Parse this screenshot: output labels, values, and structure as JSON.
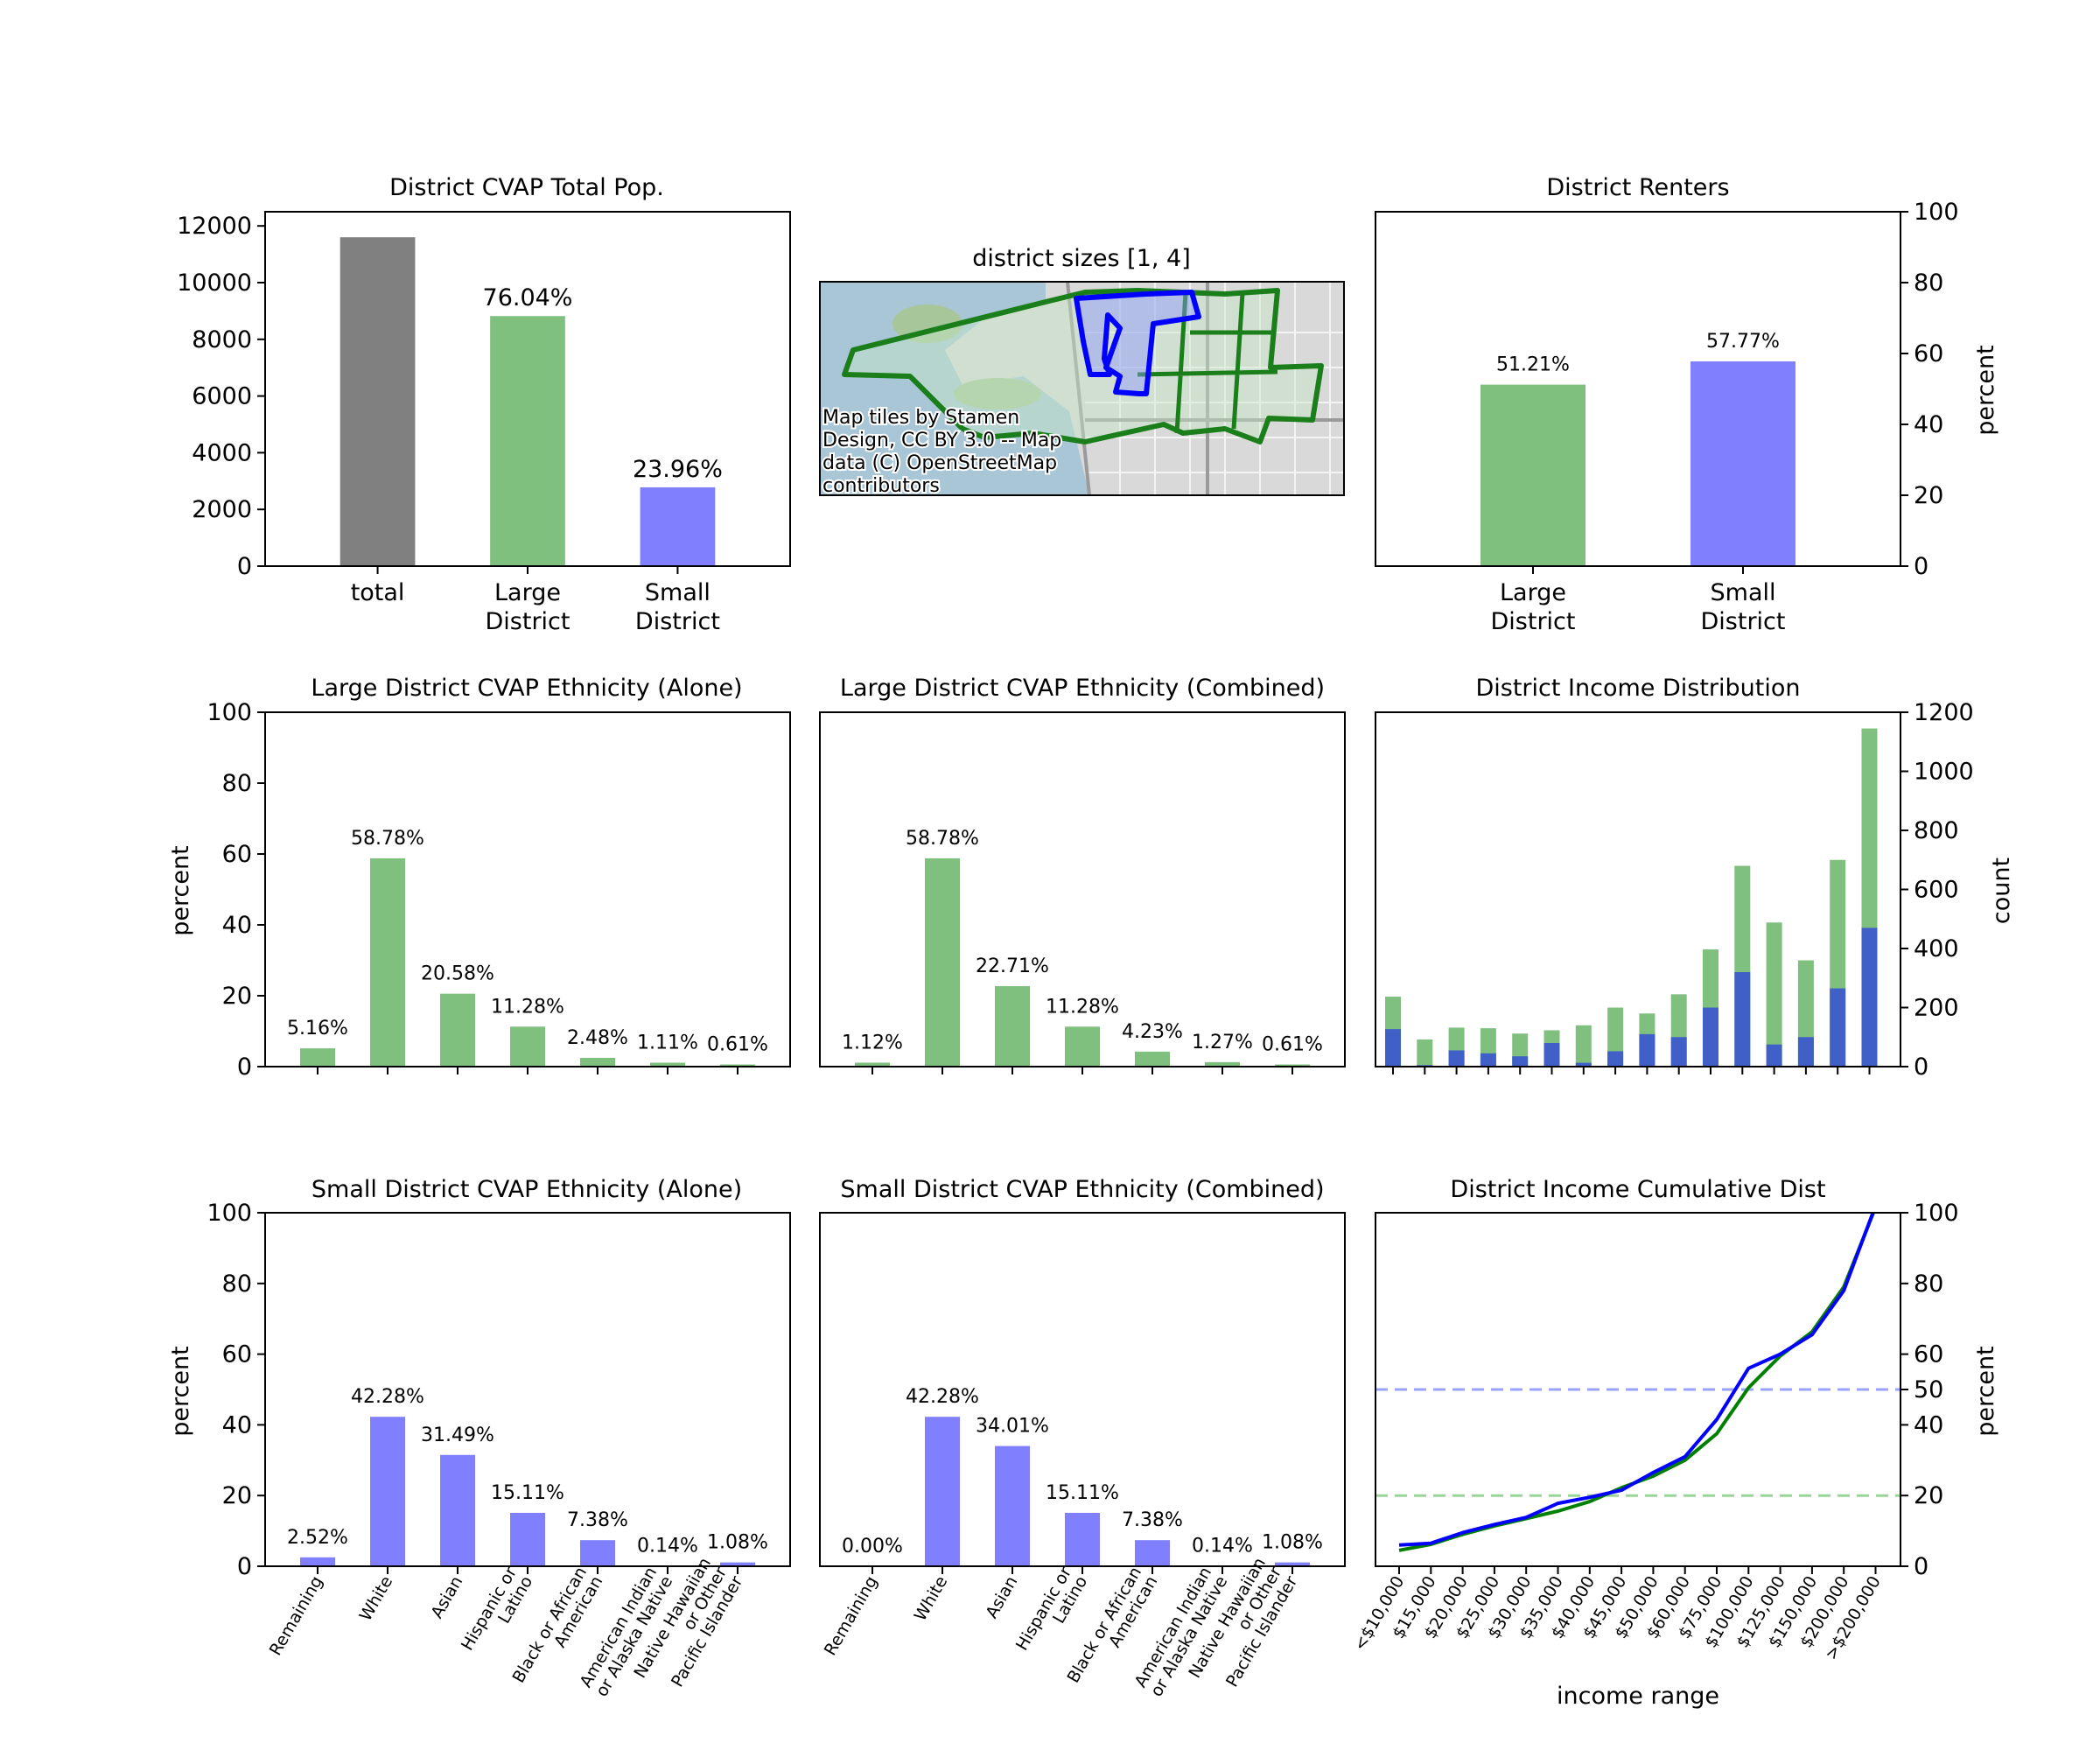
{
  "colors": {
    "total": "#808080",
    "large": "#7fc07f",
    "small": "#8080ff",
    "small_dark": "#4060c8",
    "large_line": "#008000",
    "small_line": "#0000ff",
    "hline_large": "#99d699",
    "hline_small": "#9aa2ff"
  },
  "map": {
    "title": "district sizes [1, 4]",
    "attribution": [
      "Map tiles by Stamen",
      "Design, CC BY 3.0 -- Map",
      "data (C) OpenStreetMap",
      "contributors"
    ]
  },
  "chart_data": [
    {
      "id": "cvap_total",
      "type": "bar",
      "title": "District CVAP Total Pop.",
      "categories": [
        [
          "total"
        ],
        [
          "Large",
          "District"
        ],
        [
          "Small",
          "District"
        ]
      ],
      "values": [
        11600,
        8820,
        2780
      ],
      "bar_colors": [
        "total",
        "large",
        "small"
      ],
      "data_labels": [
        "",
        "76.04%",
        "23.96%"
      ],
      "ylim": [
        0,
        12500
      ],
      "yticks": [
        0,
        2000,
        4000,
        6000,
        8000,
        10000,
        12000
      ],
      "ylabel": "",
      "yaxis": "left"
    },
    {
      "id": "renters",
      "type": "bar",
      "title": "District Renters",
      "categories": [
        [
          "Large",
          "District"
        ],
        [
          "Small",
          "District"
        ]
      ],
      "values": [
        51.21,
        57.77
      ],
      "bar_colors": [
        "large",
        "small"
      ],
      "data_labels": [
        "51.21%",
        "57.77%"
      ],
      "ylim": [
        0,
        100
      ],
      "yticks": [
        0,
        20,
        40,
        60,
        80,
        100
      ],
      "ylabel": "percent",
      "yaxis": "right"
    },
    {
      "id": "large_alone",
      "type": "bar",
      "title": "Large District CVAP Ethnicity (Alone)",
      "categories": [
        "Remaining",
        "White",
        "Asian",
        "Hispanic or Latino",
        "Black or African American",
        "American Indian or Alaska Native",
        "Native Hawaiian or Other Pacific Islander"
      ],
      "values": [
        5.16,
        58.78,
        20.58,
        11.28,
        2.48,
        1.11,
        0.61
      ],
      "data_labels": [
        "5.16%",
        "58.78%",
        "20.58%",
        "11.28%",
        "2.48%",
        "1.11%",
        "0.61%"
      ],
      "bar_color": "large",
      "ylim": [
        0,
        100
      ],
      "yticks": [
        0,
        20,
        40,
        60,
        80,
        100
      ],
      "ylabel": "percent"
    },
    {
      "id": "large_combined",
      "type": "bar",
      "title": "Large District CVAP Ethnicity (Combined)",
      "categories": [
        "Remaining",
        "White",
        "Asian",
        "Hispanic or Latino",
        "Black or African American",
        "American Indian or Alaska Native",
        "Native Hawaiian or Other Pacific Islander"
      ],
      "values": [
        1.12,
        58.78,
        22.71,
        11.28,
        4.23,
        1.27,
        0.61
      ],
      "data_labels": [
        "1.12%",
        "58.78%",
        "22.71%",
        "11.28%",
        "4.23%",
        "1.27%",
        "0.61%"
      ],
      "bar_color": "large",
      "ylim": [
        0,
        100
      ],
      "yticks": [
        0,
        20,
        40,
        60,
        80,
        100
      ],
      "ylabel": ""
    },
    {
      "id": "income_dist",
      "type": "bar",
      "title": "District Income Distribution",
      "categories": [
        "<$10,000",
        "$15,000",
        "$20,000",
        "$25,000",
        "$30,000",
        "$35,000",
        "$40,000",
        "$45,000",
        "$50,000",
        "$60,000",
        "$75,000",
        "$100,000",
        "$125,000",
        "$150,000",
        "$200,000",
        ">$200,000"
      ],
      "series": [
        {
          "color": "large",
          "values": [
            237,
            92,
            132,
            130,
            112,
            123,
            140,
            200,
            180,
            245,
            397,
            680,
            488,
            360,
            700,
            1145
          ]
        },
        {
          "color": "small_dark",
          "values": [
            127,
            5,
            55,
            45,
            35,
            80,
            13,
            52,
            110,
            100,
            200,
            320,
            75,
            100,
            265,
            470
          ]
        }
      ],
      "ylim": [
        0,
        1200
      ],
      "yticks": [
        0,
        200,
        400,
        600,
        800,
        1000,
        1200
      ],
      "ylabel": "count",
      "yaxis": "right"
    },
    {
      "id": "small_alone",
      "type": "bar",
      "title": "Small District CVAP Ethnicity (Alone)",
      "categories": [
        "Remaining",
        "White",
        "Asian",
        "Hispanic or Latino",
        "Black or African American",
        "American Indian or Alaska Native",
        "Native Hawaiian or Other Pacific Islander"
      ],
      "tick_labels": [
        [
          "Remaining"
        ],
        [
          "White"
        ],
        [
          "Asian"
        ],
        [
          "Hispanic or",
          "Latino"
        ],
        [
          "Black or African",
          "American"
        ],
        [
          "American Indian",
          "or Alaska Native"
        ],
        [
          "Native Hawaiian",
          "or Other",
          "Pacific Islander"
        ]
      ],
      "values": [
        2.52,
        42.28,
        31.49,
        15.11,
        7.38,
        0.14,
        1.08
      ],
      "data_labels": [
        "2.52%",
        "42.28%",
        "31.49%",
        "15.11%",
        "7.38%",
        "0.14%",
        "1.08%"
      ],
      "bar_color": "small",
      "ylim": [
        0,
        100
      ],
      "yticks": [
        0,
        20,
        40,
        60,
        80,
        100
      ],
      "ylabel": "percent"
    },
    {
      "id": "small_combined",
      "type": "bar",
      "title": "Small District CVAP Ethnicity (Combined)",
      "categories": [
        "Remaining",
        "White",
        "Asian",
        "Hispanic or Latino",
        "Black or African American",
        "American Indian or Alaska Native",
        "Native Hawaiian or Other Pacific Islander"
      ],
      "tick_labels": [
        [
          "Remaining"
        ],
        [
          "White"
        ],
        [
          "Asian"
        ],
        [
          "Hispanic or",
          "Latino"
        ],
        [
          "Black or African",
          "American"
        ],
        [
          "American Indian",
          "or Alaska Native"
        ],
        [
          "Native Hawaiian",
          "or Other",
          "Pacific Islander"
        ]
      ],
      "values": [
        0.0,
        42.28,
        34.01,
        15.11,
        7.38,
        0.14,
        1.08
      ],
      "data_labels": [
        "0.00%",
        "42.28%",
        "34.01%",
        "15.11%",
        "7.38%",
        "0.14%",
        "1.08%"
      ],
      "bar_color": "small",
      "ylim": [
        0,
        100
      ],
      "yticks": [
        0,
        20,
        40,
        60,
        80,
        100
      ],
      "ylabel": ""
    },
    {
      "id": "income_cum",
      "type": "line",
      "title": "District Income Cumulative Dist",
      "categories": [
        "<$10,000",
        "$15,000",
        "$20,000",
        "$25,000",
        "$30,000",
        "$35,000",
        "$40,000",
        "$45,000",
        "$50,000",
        "$60,000",
        "$75,000",
        "$100,000",
        "$125,000",
        "$150,000",
        "$200,000",
        ">$200,000"
      ],
      "series": [
        {
          "color": "large_line",
          "values": [
            4.5,
            6.2,
            9.0,
            11.4,
            13.5,
            15.6,
            18.3,
            22.2,
            25.5,
            30.0,
            37.5,
            50.5,
            59.5,
            66.3,
            79.0,
            101.5
          ]
        },
        {
          "color": "small_line",
          "values": [
            6.0,
            6.5,
            9.5,
            11.8,
            13.8,
            17.8,
            19.5,
            21.5,
            26.5,
            31.0,
            41.5,
            56.0,
            60.0,
            65.5,
            78.0,
            102.0
          ]
        }
      ],
      "hlines": [
        {
          "y": 50,
          "color": "hline_small"
        },
        {
          "y": 20,
          "color": "hline_large"
        }
      ],
      "ylim": [
        0,
        100
      ],
      "yticks": [
        0,
        20,
        40,
        50,
        60,
        80,
        100
      ],
      "ylabel": "percent",
      "xlabel": "income range",
      "yaxis": "right"
    }
  ]
}
